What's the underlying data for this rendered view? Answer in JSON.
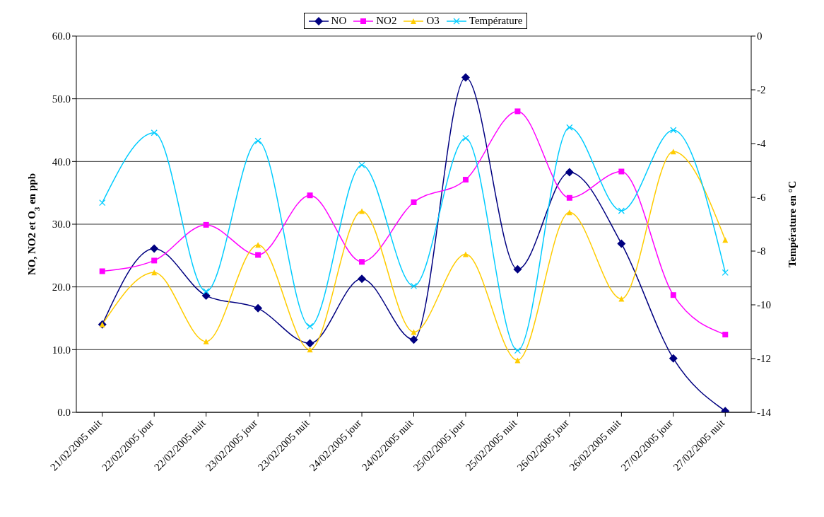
{
  "chart_data": {
    "type": "line",
    "ylabel": "NO, NO2 et O$_{3}$ en ppb",
    "y2label": "Température en °C",
    "categories": [
      "21/02/2005 nuit",
      "22/02/2005 jour",
      "22/02/2005 nuit",
      "23/02/2005 jour",
      "23/02/2005 nuit",
      "24/02/2005 jour",
      "24/02/2005 nuit",
      "25/02/2005 jour",
      "25/02/2005 nuit",
      "26/02/2005 jour",
      "26/02/2005 nuit",
      "27/02/2005 jour",
      "27/02/2005 nuit"
    ],
    "series": [
      {
        "name": "NO",
        "color": "#000080",
        "marker": "diamond",
        "values": [
          14.0,
          26.1,
          18.6,
          16.6,
          11.0,
          21.3,
          11.6,
          53.4,
          22.8,
          38.3,
          26.9,
          8.6,
          0.2
        ]
      },
      {
        "name": "NO2",
        "color": "#ff00ff",
        "marker": "square",
        "values": [
          22.5,
          24.2,
          29.9,
          25.1,
          34.6,
          24.0,
          33.5,
          37.1,
          48.0,
          34.2,
          38.4,
          18.7,
          12.4
        ]
      },
      {
        "name": "O3",
        "color": "#ffcc00",
        "marker": "triangle",
        "values": [
          14.0,
          22.3,
          11.3,
          26.7,
          10.0,
          32.1,
          12.8,
          25.2,
          8.3,
          31.9,
          18.1,
          41.6,
          27.5
        ]
      },
      {
        "name": "Température",
        "color": "#00ccff",
        "marker": "cross",
        "axis": "y2",
        "values": [
          -6.2,
          -3.6,
          -9.5,
          -3.9,
          -10.8,
          -4.8,
          -9.3,
          -3.8,
          -11.7,
          -3.4,
          -6.5,
          -3.5,
          -8.8
        ]
      }
    ],
    "ylim": [
      0,
      60
    ],
    "yticks": [
      {
        "value": 0,
        "label": "0.0"
      },
      {
        "value": 10,
        "label": "10.0"
      },
      {
        "value": 20,
        "label": "20.0"
      },
      {
        "value": 30,
        "label": "30.0"
      },
      {
        "value": 40,
        "label": "40.0"
      },
      {
        "value": 50,
        "label": "50.0"
      },
      {
        "value": 60,
        "label": "60.0"
      }
    ],
    "y2lim": [
      -14,
      0
    ],
    "y2ticks": [
      -14,
      -12,
      -10,
      -8,
      -6,
      -4,
      -2,
      0
    ],
    "grid": "y",
    "legend": "top",
    "line_style": "solid"
  }
}
